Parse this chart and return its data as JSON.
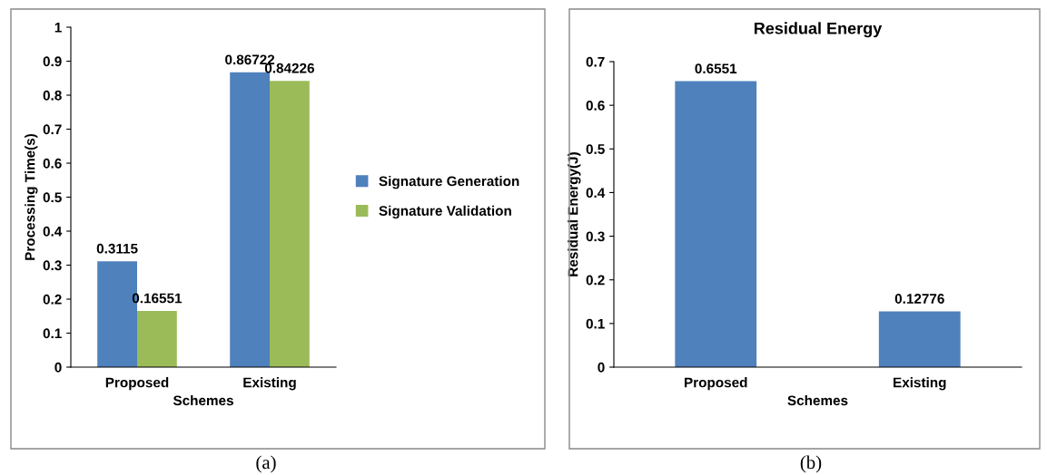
{
  "chart_data": [
    {
      "type": "bar",
      "categories": [
        "Proposed",
        "Existing"
      ],
      "series": [
        {
          "name": "Signature Generation",
          "color": "#4f81bd",
          "values": [
            0.3115,
            0.86722
          ]
        },
        {
          "name": "Signature Validation",
          "color": "#9bbb59",
          "values": [
            0.16551,
            0.84226
          ]
        }
      ],
      "xlabel": "Schemes",
      "ylabel": "Processing Time(s)",
      "ylim": [
        0,
        1
      ],
      "yticks": [
        0,
        0.1,
        0.2,
        0.3,
        0.4,
        0.5,
        0.6,
        0.7,
        0.8,
        0.9,
        1
      ],
      "data_labels": true,
      "legend": "right",
      "grid": false,
      "annotations": [
        "(a)"
      ]
    },
    {
      "type": "bar",
      "categories": [
        "Proposed",
        "Existing"
      ],
      "title": "Residual Energy",
      "values": [
        0.6551,
        0.12776
      ],
      "color": "#4f81bd",
      "xlabel": "Schemes",
      "ylabel": "Residual Energy(J)",
      "ylim": [
        0,
        0.7
      ],
      "yticks": [
        0,
        0.1,
        0.2,
        0.3,
        0.4,
        0.5,
        0.6,
        0.7
      ],
      "data_labels": true,
      "grid": false,
      "annotations": [
        "(b)"
      ]
    }
  ]
}
